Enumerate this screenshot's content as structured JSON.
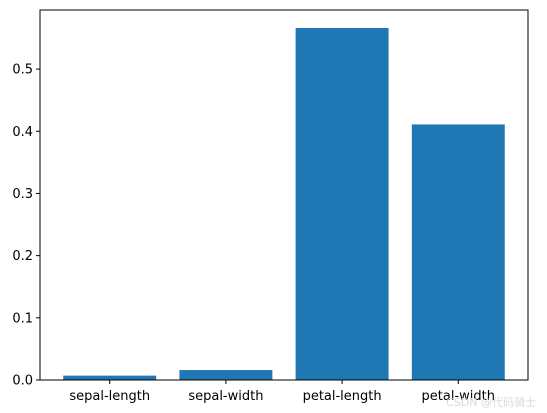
{
  "chart_data": {
    "type": "bar",
    "categories": [
      "sepal-length",
      "sepal-width",
      "petal-length",
      "petal-width"
    ],
    "values": [
      0.007,
      0.016,
      0.566,
      0.411
    ],
    "title": "",
    "xlabel": "",
    "ylabel": "",
    "ylim": [
      0,
      0.595
    ],
    "yticks": [
      0.0,
      0.1,
      0.2,
      0.3,
      0.4,
      0.5
    ],
    "ytick_labels": [
      "0.0",
      "0.1",
      "0.2",
      "0.3",
      "0.4",
      "0.5"
    ],
    "grid": false,
    "legend": "none",
    "bar_color": "#1f77b4"
  },
  "watermark": "CSDN @代码骑士"
}
